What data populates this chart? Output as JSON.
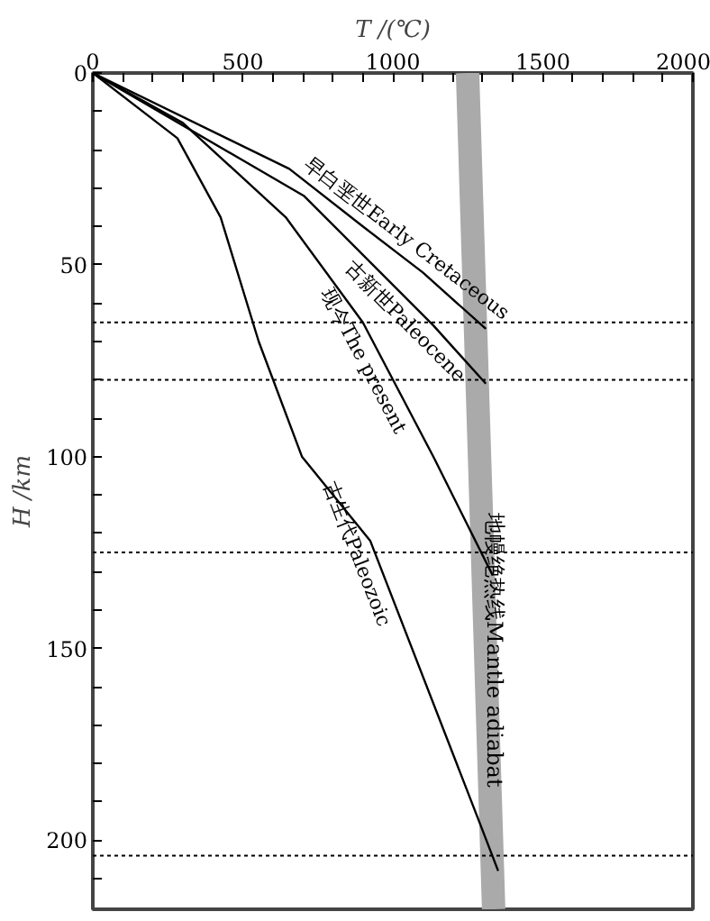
{
  "chart_data": {
    "type": "line",
    "xlabel": "T /(℃)",
    "ylabel": "H /km",
    "xlim": [
      0,
      2000
    ],
    "ylim": [
      218,
      0
    ],
    "xticks": [
      0,
      {
        "value": 100,
        "label": null
      },
      {
        "value": 200,
        "label": null
      },
      {
        "value": 300,
        "label": null
      },
      {
        "value": 400,
        "label": null
      },
      500,
      {
        "value": 600,
        "label": null
      },
      {
        "value": 700,
        "label": null
      },
      {
        "value": 800,
        "label": null
      },
      {
        "value": 900,
        "label": null
      },
      1000,
      {
        "value": 1100,
        "label": null
      },
      {
        "value": 1200,
        "label": null
      },
      {
        "value": 1300,
        "label": null
      },
      {
        "value": 1400,
        "label": null
      },
      1500,
      {
        "value": 1600,
        "label": null
      },
      {
        "value": 1700,
        "label": null
      },
      {
        "value": 1800,
        "label": null
      },
      {
        "value": 1900,
        "label": null
      },
      2000
    ],
    "yticks": [
      0,
      {
        "value": 10,
        "label": null
      },
      {
        "value": 20,
        "label": null
      },
      {
        "value": 30,
        "label": null
      },
      {
        "value": 40,
        "label": null
      },
      50,
      {
        "value": 60,
        "label": null
      },
      {
        "value": 70,
        "label": null
      },
      {
        "value": 80,
        "label": null
      },
      {
        "value": 90,
        "label": null
      },
      100,
      {
        "value": 110,
        "label": null
      },
      {
        "value": 120,
        "label": null
      },
      {
        "value": 130,
        "label": null
      },
      {
        "value": 140,
        "label": null
      },
      150,
      {
        "value": 160,
        "label": null
      },
      {
        "value": 170,
        "label": null
      },
      {
        "value": 180,
        "label": null
      },
      {
        "value": 190,
        "label": null
      },
      200,
      {
        "value": 210,
        "label": null
      }
    ],
    "grid": false,
    "marker": "none",
    "line_style": "solid",
    "series": [
      {
        "name": "早白垩世Early Cretaceous",
        "color": "#000000",
        "x": [
          0,
          655,
          900,
          1100,
          1310
        ],
        "values": [
          0,
          25,
          40,
          52,
          66.7
        ]
      },
      {
        "name": "古新世Paleocene",
        "color": "#000000",
        "x": [
          0,
          703,
          775,
          1135,
          1310
        ],
        "values": [
          0,
          32,
          37.6,
          65.8,
          81
        ]
      },
      {
        "name": "现今The present",
        "color": "#000000",
        "x": [
          0,
          300,
          643,
          900,
          1135,
          1333
        ],
        "values": [
          0,
          13,
          37.6,
          65,
          100,
          131
        ]
      },
      {
        "name": "古生代Paleozoic",
        "color": "#000000",
        "x": [
          0,
          282,
          426,
          553,
          697,
          925,
          1297,
          1351
        ],
        "values": [
          0,
          17,
          37.6,
          70,
          100,
          122,
          197,
          208
        ]
      },
      {
        "name": "地幔绝热线Mantle adiabat",
        "color": "#aaaaaa",
        "x": [
          1249,
          1336
        ],
        "values": [
          0,
          218
        ]
      }
    ],
    "ref_lines": [
      {
        "axis": "y",
        "value": 65,
        "label": null,
        "line_style": "dotted",
        "color": "#000000"
      },
      {
        "axis": "y",
        "value": 80,
        "label": null,
        "line_style": "dotted",
        "color": "#000000"
      },
      {
        "axis": "y",
        "value": 125,
        "label": null,
        "line_style": "dotted",
        "color": "#000000"
      },
      {
        "axis": "y",
        "value": 204,
        "label": null,
        "line_style": "dotted",
        "color": "#000000"
      }
    ]
  }
}
